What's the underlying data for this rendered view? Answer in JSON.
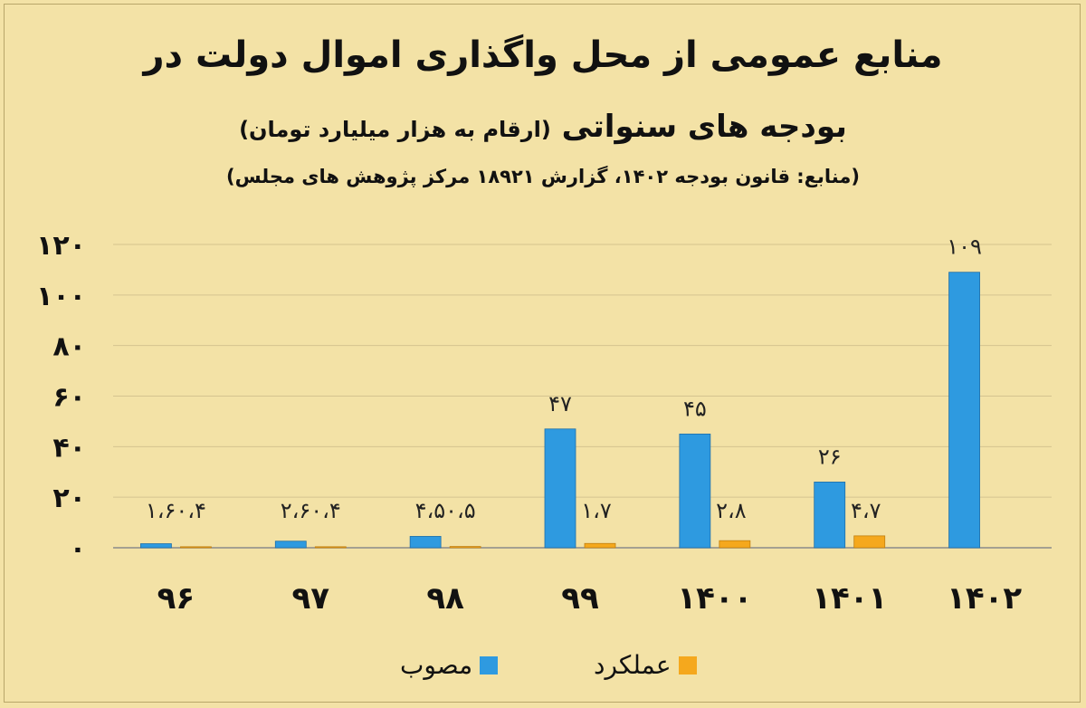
{
  "title_line1": "منابع عمومی از محل واگذاری اموال دولت در",
  "title_line2_main": "بودجه های سنواتی",
  "title_line2_note": "(ارقام به هزار میلیارد تومان)",
  "source": "(منابع: قانون بودجه ۱۴۰۲، گزارش ۱۸۹۲۱ مرکز پژوهش های مجلس)",
  "colors": {
    "approved": "#2e9ae0",
    "performance": "#f5a81d",
    "grid": "#d4c48f",
    "axis": "#8a8a8a"
  },
  "chart_data": {
    "type": "bar",
    "categories": [
      "۹۶",
      "۹۷",
      "۹۸",
      "۹۹",
      "۱۴۰۰",
      "۱۴۰۱",
      "۱۴۰۲"
    ],
    "series": [
      {
        "name": "مصوب",
        "values": [
          1.6,
          2.6,
          4.5,
          47,
          45,
          26,
          109
        ]
      },
      {
        "name": "عملکرد",
        "values": [
          0.4,
          0.4,
          0.5,
          1.7,
          2.8,
          4.7,
          null
        ]
      }
    ],
    "data_labels": [
      "۱،۶۰،۴",
      "۲،۶۰،۴",
      "۴،۵۰،۵",
      "۴۷",
      "۱،۷",
      "۴۵",
      "۲،۸",
      "۲۶",
      "۴،۷",
      "۱۰۹"
    ],
    "yticks": [
      0,
      20,
      40,
      60,
      80,
      100,
      120
    ],
    "ytick_labels": [
      "۰",
      "۲۰",
      "۴۰",
      "۶۰",
      "۸۰",
      "۱۰۰",
      "۱۲۰"
    ],
    "ylim": [
      0,
      120
    ],
    "grid": true,
    "legend_position": "bottom"
  }
}
